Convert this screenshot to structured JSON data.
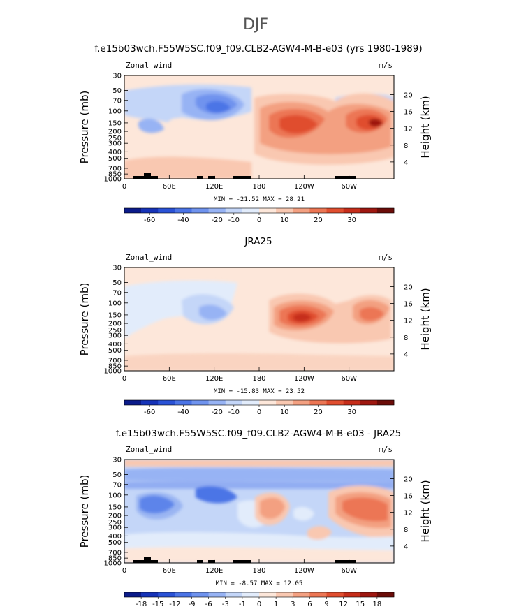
{
  "page_title": "DJF",
  "colors": {
    "contour_levels": [
      "#0b1b8a",
      "#1633b8",
      "#2a52d6",
      "#4b74e6",
      "#6f93ee",
      "#97b3f4",
      "#c4d6f8",
      "#e2ecfb",
      "#fde7da",
      "#f9c8b1",
      "#f3a081",
      "#ec7654",
      "#e04e2f",
      "#c62d1a",
      "#9e1710",
      "#6b0c08"
    ],
    "land": "#000000"
  },
  "chart_data": [
    {
      "type": "heatmap",
      "title": "f.e15b03wch.F55W5SC.f09_f09.CLB2-AGW4-M-B-e03 (yrs 1980-1989)",
      "left_label": "Zonal wind",
      "units": "m/s",
      "ylabel": "Pressure (mb)",
      "ylabel_right": "Height (km)",
      "x_ticks": [
        "0",
        "60E",
        "120E",
        "180",
        "120W",
        "60W"
      ],
      "y_ticks": [
        "30",
        "50",
        "70",
        "100",
        "150",
        "200",
        "250",
        "300",
        "400",
        "500",
        "700",
        "850",
        "1000"
      ],
      "height_ticks": [
        "20",
        "16",
        "12",
        "8",
        "4"
      ],
      "min": -21.52,
      "max": 28.21,
      "min_max_text": "MIN = -21.52   MAX =  28.21",
      "colorbar_labels": [
        "-60",
        "-40",
        "-20",
        "-10",
        "0",
        "10",
        "20",
        "30"
      ],
      "features": [
        {
          "lon": 110,
          "p": 130,
          "value": -21
        },
        {
          "lon": 40,
          "p": 160,
          "value": -12
        },
        {
          "lon": 230,
          "p": 160,
          "value": 28
        },
        {
          "lon": 280,
          "p": 160,
          "value": 22
        }
      ]
    },
    {
      "type": "heatmap",
      "title": "JRA25",
      "left_label": "Zonal_wind",
      "units": "m/s",
      "ylabel": "Pressure (mb)",
      "ylabel_right": "Height (km)",
      "x_ticks": [
        "0",
        "60E",
        "120E",
        "180",
        "120W",
        "60W"
      ],
      "y_ticks": [
        "30",
        "50",
        "70",
        "100",
        "150",
        "200",
        "250",
        "300",
        "400",
        "500",
        "700",
        "850",
        "1000"
      ],
      "height_ticks": [
        "20",
        "16",
        "12",
        "8",
        "4"
      ],
      "min": -15.83,
      "max": 23.52,
      "min_max_text": "MIN = -15.83   MAX =  23.52",
      "colorbar_labels": [
        "-60",
        "-40",
        "-20",
        "-10",
        "0",
        "10",
        "20",
        "30"
      ],
      "features": [
        {
          "lon": 115,
          "p": 150,
          "value": -15
        },
        {
          "lon": 230,
          "p": 160,
          "value": 23
        },
        {
          "lon": 290,
          "p": 160,
          "value": 18
        }
      ]
    },
    {
      "type": "heatmap",
      "title": "f.e15b03wch.F55W5SC.f09_f09.CLB2-AGW4-M-B-e03 - JRA25",
      "left_label": "Zonal_wind",
      "units": "m/s",
      "ylabel": "Pressure (mb)",
      "ylabel_right": "Height (km)",
      "x_ticks": [
        "0",
        "60E",
        "120E",
        "180",
        "120W",
        "60W"
      ],
      "y_ticks": [
        "30",
        "50",
        "70",
        "100",
        "150",
        "200",
        "250",
        "300",
        "400",
        "500",
        "700",
        "850",
        "1000"
      ],
      "height_ticks": [
        "20",
        "16",
        "12",
        "8",
        "4"
      ],
      "min": -8.57,
      "max": 12.05,
      "min_max_text": "MIN =  -8.57   MAX =  12.05",
      "colorbar_labels": [
        "-18",
        "-15",
        "-12",
        "-9",
        "-6",
        "-3",
        "-1",
        "0",
        "1",
        "3",
        "6",
        "9",
        "12",
        "15",
        "18"
      ],
      "features": [
        {
          "lon": 30,
          "p": 180,
          "value": -7
        },
        {
          "lon": 130,
          "p": 120,
          "value": -8
        },
        {
          "lon": 200,
          "p": 200,
          "value": 5
        },
        {
          "lon": 300,
          "p": 180,
          "value": 11
        }
      ]
    }
  ]
}
